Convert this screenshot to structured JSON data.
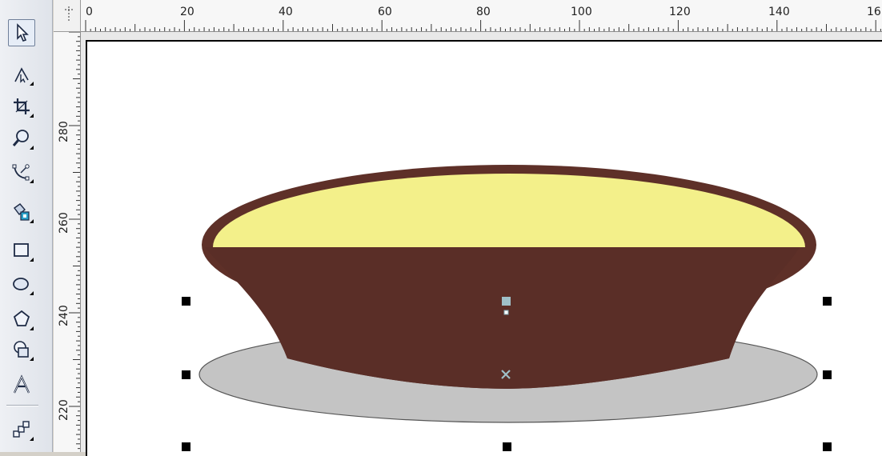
{
  "toolbox": {
    "tools": [
      {
        "name": "pick-tool",
        "icon": "pointer-arrow-icon",
        "active": true
      },
      {
        "name": "shape-tool",
        "icon": "shape-edit-icon"
      },
      {
        "name": "crop-tool",
        "icon": "crop-icon"
      },
      {
        "name": "zoom-tool",
        "icon": "magnifier-icon"
      },
      {
        "name": "freehand-tool",
        "icon": "curve-nodes-icon"
      },
      {
        "name": "smart-fill-tool",
        "icon": "smart-fill-icon"
      },
      {
        "name": "rectangle-tool",
        "icon": "rectangle-icon"
      },
      {
        "name": "ellipse-tool",
        "icon": "ellipse-icon"
      },
      {
        "name": "polygon-tool",
        "icon": "polygon-icon"
      },
      {
        "name": "basic-shapes-tool",
        "icon": "basic-shapes-icon"
      },
      {
        "name": "text-tool",
        "icon": "text-a-icon"
      },
      {
        "name": "interactive-tool",
        "icon": "blend-steps-icon"
      }
    ]
  },
  "rulers": {
    "horizontal_labels": [
      "0",
      "20",
      "40",
      "60",
      "80",
      "100",
      "120",
      "140",
      "16"
    ],
    "vertical_labels": [
      "280",
      "260",
      "240",
      "220"
    ]
  },
  "drawing": {
    "colors": {
      "bowl_rim": "#5e3028",
      "bowl_body": "#5a2e27",
      "bowl_filling": "#f3f08a",
      "plate_fill": "#c4c4c4",
      "plate_outline": "#555555",
      "selection_handle": "#000000",
      "center_marker": "#9fc0c8"
    }
  }
}
